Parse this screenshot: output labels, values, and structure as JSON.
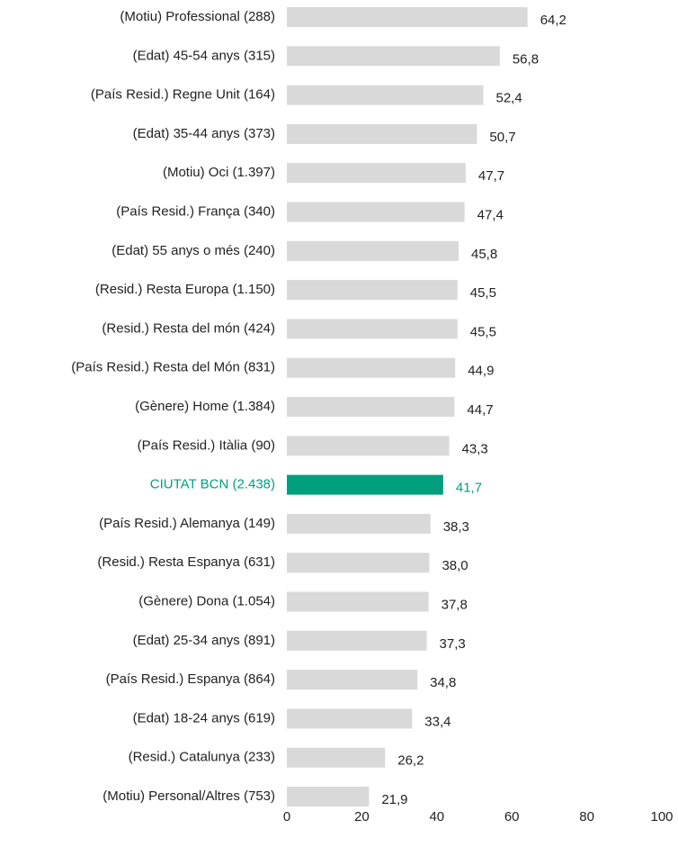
{
  "chart_data": {
    "type": "barh",
    "categories": [
      "(Motiu) Professional (288)",
      "(Edat) 45-54 anys (315)",
      "(País Resid.) Regne Unit (164)",
      "(Edat) 35-44 anys (373)",
      "(Motiu) Oci (1.397)",
      "(País Resid.) França (340)",
      "(Edat) 55 anys o més (240)",
      "(Resid.) Resta Europa (1.150)",
      "(Resid.) Resta del món (424)",
      "(País Resid.) Resta del Món (831)",
      "(Gènere) Home (1.384)",
      "(País Resid.) Itàlia (90)",
      "CIUTAT BCN (2.438)",
      "(País Resid.) Alemanya (149)",
      "(Resid.) Resta Espanya (631)",
      "(Gènere) Dona (1.054)",
      "(Edat) 25-34 anys (891)",
      "(País Resid.) Espanya (864)",
      "(Edat) 18-24 anys (619)",
      "(Resid.) Catalunya (233)",
      "(Motiu) Personal/Altres (753)"
    ],
    "values": [
      64.2,
      56.8,
      52.4,
      50.7,
      47.7,
      47.4,
      45.8,
      45.5,
      45.5,
      44.9,
      44.7,
      43.3,
      41.7,
      38.3,
      38.0,
      37.8,
      37.3,
      34.8,
      33.4,
      26.2,
      21.9
    ],
    "value_labels": [
      "64,2",
      "56,8",
      "52,4",
      "50,7",
      "47,7",
      "47,4",
      "45,8",
      "45,5",
      "45,5",
      "44,9",
      "44,7",
      "43,3",
      "41,7",
      "38,3",
      "38,0",
      "37,8",
      "37,3",
      "34,8",
      "33,4",
      "26,2",
      "21,9"
    ],
    "colors": [
      "#d9d9d9",
      "#d9d9d9",
      "#d9d9d9",
      "#d9d9d9",
      "#d9d9d9",
      "#d9d9d9",
      "#d9d9d9",
      "#d9d9d9",
      "#d9d9d9",
      "#d9d9d9",
      "#d9d9d9",
      "#d9d9d9",
      "#00a07f",
      "#d9d9d9",
      "#d9d9d9",
      "#d9d9d9",
      "#d9d9d9",
      "#d9d9d9",
      "#d9d9d9",
      "#d9d9d9",
      "#d9d9d9"
    ],
    "label_colors": [
      "#222222",
      "#222222",
      "#222222",
      "#222222",
      "#222222",
      "#222222",
      "#222222",
      "#222222",
      "#222222",
      "#222222",
      "#222222",
      "#222222",
      "#00a07f",
      "#222222",
      "#222222",
      "#222222",
      "#222222",
      "#222222",
      "#222222",
      "#222222",
      "#222222"
    ],
    "xlim": [
      0,
      100
    ],
    "xticks": [
      0,
      20,
      40,
      60,
      80,
      100
    ],
    "grid": false
  }
}
